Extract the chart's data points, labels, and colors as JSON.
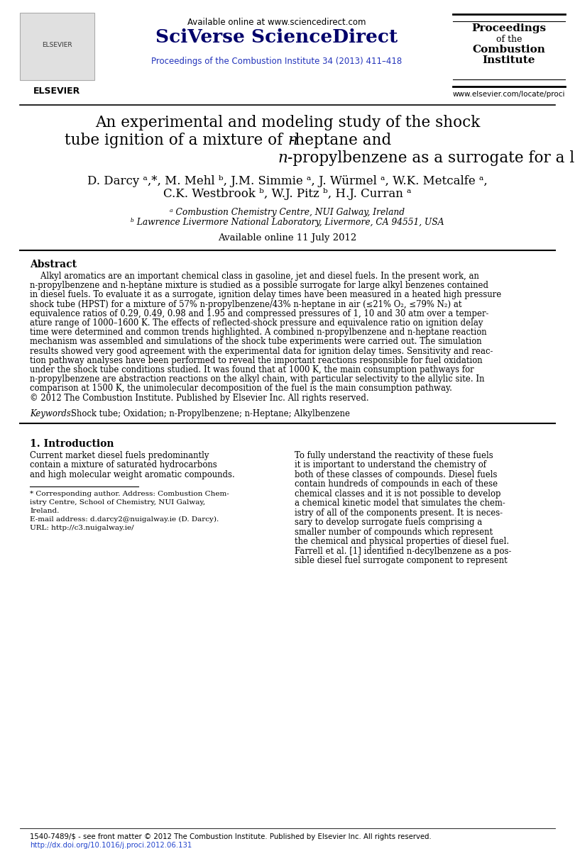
{
  "background_color": "#ffffff",
  "available_online_text": "Available online at www.sciencedirect.com",
  "sciverse_text": "SciVerse ScienceDirect",
  "journal_blue_text": "Proceedings of the Combustion Institute 34 (2013) 411–418",
  "proceedings_lines": [
    "Proceedings",
    "of the",
    "Combustion",
    "Institute"
  ],
  "elsevier_url": "www.elsevier.com/locate/proci",
  "title_line1": "An experimental and modeling study of the shock",
  "title_line2_pre": "tube ignition of a mixture of ",
  "title_line2_italic": "n",
  "title_line2_post": "-heptane and",
  "title_line3_italic": "n",
  "title_line3_post": "-propylbenzene as a surrogate for a large alkyl benzene",
  "authors_line1": "D. Darcy ᵃ,*, M. Mehl ᵇ, J.M. Simmie ᵃ, J. Würmel ᵃ, W.K. Metcalfe ᵃ,",
  "authors_line2": "C.K. Westbrook ᵇ, W.J. Pitz ᵇ, H.J. Curran ᵃ",
  "affil_a": "ᵃ Combustion Chemistry Centre, NUI Galway, Ireland",
  "affil_b": "ᵇ Lawrence Livermore National Laboratory, Livermore, CA 94551, USA",
  "available_online_date": "Available online 11 July 2012",
  "abstract_title": "Abstract",
  "abstract_lines": [
    "    Alkyl aromatics are an important chemical class in gasoline, jet and diesel fuels. In the present work, an",
    "n-propylbenzene and n-heptane mixture is studied as a possible surrogate for large alkyl benzenes contained",
    "in diesel fuels. To evaluate it as a surrogate, ignition delay times have been measured in a heated high pressure",
    "shock tube (HPST) for a mixture of 57% n-propylbenzene/43% n-heptane in air (≤21% O₂, ≤79% N₂) at",
    "equivalence ratios of 0.29, 0.49, 0.98 and 1.95 and compressed pressures of 1, 10 and 30 atm over a temper-",
    "ature range of 1000–1600 K. The effects of reflected-shock pressure and equivalence ratio on ignition delay",
    "time were determined and common trends highlighted. A combined n-propylbenzene and n-heptane reaction",
    "mechanism was assembled and simulations of the shock tube experiments were carried out. The simulation",
    "results showed very good agreement with the experimental data for ignition delay times. Sensitivity and reac-",
    "tion pathway analyses have been performed to reveal the important reactions responsible for fuel oxidation",
    "under the shock tube conditions studied. It was found that at 1000 K, the main consumption pathways for",
    "n-propylbenzene are abstraction reactions on the alkyl chain, with particular selectivity to the allylic site. In",
    "comparison at 1500 K, the unimolecular decomposition of the fuel is the main consumption pathway.",
    "© 2012 The Combustion Institute. Published by Elsevier Inc. All rights reserved."
  ],
  "keywords_label": "Keywords: ",
  "keywords_text": "Shock tube; Oxidation; n-Propylbenzene; n-Heptane; Alkylbenzene",
  "section1_title": "1. Introduction",
  "intro_left_lines": [
    "Current market diesel fuels predominantly",
    "contain a mixture of saturated hydrocarbons",
    "and high molecular weight aromatic compounds."
  ],
  "intro_right_lines": [
    "To fully understand the reactivity of these fuels",
    "it is important to understand the chemistry of",
    "both of these classes of compounds. Diesel fuels",
    "contain hundreds of compounds in each of these",
    "chemical classes and it is not possible to develop",
    "a chemical kinetic model that simulates the chem-",
    "istry of all of the components present. It is neces-",
    "sary to develop surrogate fuels comprising a",
    "smaller number of compounds which represent",
    "the chemical and physical properties of diesel fuel.",
    "Farrell et al. [1] identified n-decylbenzene as a pos-",
    "sible diesel fuel surrogate component to represent"
  ],
  "footnote_lines": [
    "* Corresponding author. Address: Combustion Chem-",
    "istry Centre, School of Chemistry, NUI Galway,",
    "Ireland.",
    "E-mail address: d.darcy2@nuigalway.ie (D. Darcy).",
    "URL: http://c3.nuigalway.ie/"
  ],
  "bottom_issn": "1540-7489/$ - see front matter © 2012 The Combustion Institute. Published by Elsevier Inc. All rights reserved.",
  "bottom_doi": "http://dx.doi.org/10.1016/j.proci.2012.06.131",
  "dark_blue": "#00006A",
  "journal_link_color": "#2233bb",
  "doi_color": "#2244cc"
}
